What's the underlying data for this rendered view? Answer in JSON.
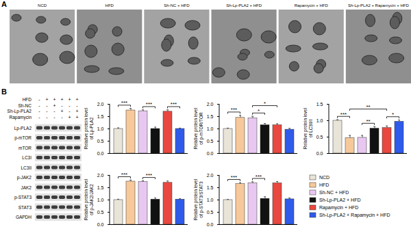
{
  "panels": {
    "A": {
      "label": "A",
      "images": [
        "NCD",
        "HFD",
        "Sh-NC + HFD",
        "Sh-Lp-PLA2 + HFD",
        "Rapamycin + HFD",
        "Sh-Lp-PLA2 + Rapamycin + HFD"
      ]
    },
    "B": {
      "label": "B",
      "blot": {
        "conditions": [
          {
            "name": "HFD",
            "signs": [
              "-",
              "+",
              "+",
              "+",
              "+",
              "+"
            ]
          },
          {
            "name": "Sh-NC",
            "signs": [
              "-",
              "-",
              "+",
              "-",
              "-",
              "-"
            ]
          },
          {
            "name": "Sh-Lp-PLA2",
            "signs": [
              "-",
              "-",
              "-",
              "+",
              "-",
              "+"
            ]
          },
          {
            "name": "Rapamycin",
            "signs": [
              "-",
              "-",
              "-",
              "-",
              "+",
              "+"
            ]
          }
        ],
        "proteins": [
          "Lp-PLA2",
          "p-mTOR",
          "mTOR",
          "LC3I",
          "LC3II",
          "p-JAK2",
          "JAK2",
          "p-STAT3",
          "STAT3",
          "GAPDH"
        ]
      }
    }
  },
  "chart_data": [
    {
      "type": "bar",
      "y_label": "Relative protein level of Lp-PLA2",
      "categories": [
        "NCD",
        "HFD",
        "Sh-NC + HFD",
        "Sh-Lp-PLA2 + HFD",
        "Rapamycin + HFD",
        "Sh-Lp-PLA2 + Rapamycin + HFD"
      ],
      "values": [
        1.0,
        1.75,
        1.72,
        1.0,
        1.7,
        1.0
      ],
      "errors": [
        0.04,
        0.08,
        0.05,
        0.07,
        0.07,
        0.03
      ],
      "colors": [
        "#e9e4d8",
        "#f7c99a",
        "#e8c8f0",
        "#111111",
        "#e8483f",
        "#2f5bea"
      ],
      "ylim": [
        0,
        2
      ],
      "yticks": [
        {
          "value": 0,
          "label": "0.0"
        },
        0.5,
        {
          "value": 1,
          "label": "1.0"
        },
        1.5,
        {
          "value": 2,
          "label": "2.0"
        }
      ],
      "tick_labels": "y",
      "annotations": [
        {
          "from": 0,
          "to": 1,
          "label": "***"
        },
        {
          "from": 2,
          "to": 3,
          "label": "***"
        },
        {
          "from": 4,
          "to": 5,
          "label": "***"
        }
      ]
    },
    {
      "type": "bar",
      "y_label": "Relative protein level of p-mTOR/TOR",
      "categories": [
        "NCD",
        "HFD",
        "Sh-NC + HFD",
        "Sh-Lp-PLA2 + HFD",
        "Rapamycin + HFD",
        "Sh-Lp-PLA2 + Rapamycin + HFD"
      ],
      "values": [
        1.0,
        1.45,
        1.43,
        1.15,
        1.15,
        0.97
      ],
      "errors": [
        0.03,
        0.1,
        0.08,
        0.07,
        0.06,
        0.05
      ],
      "colors": [
        "#e9e4d8",
        "#f7c99a",
        "#e8c8f0",
        "#111111",
        "#e8483f",
        "#2f5bea"
      ],
      "ylim": [
        0,
        2
      ],
      "yticks": [
        {
          "value": 0,
          "label": "0.0"
        },
        0.5,
        {
          "value": 1,
          "label": "1.0"
        },
        1.5,
        {
          "value": 2,
          "label": "2.0"
        }
      ],
      "tick_labels": "y",
      "annotations": [
        {
          "from": 0,
          "to": 1,
          "label": "***"
        },
        {
          "from": 2,
          "to": 3,
          "label": "*"
        },
        {
          "from": 2,
          "to": 4,
          "label": "*"
        }
      ]
    },
    {
      "type": "bar",
      "y_label": "Relative protein level of LC3II/I",
      "categories": [
        "NCD",
        "HFD",
        "Sh-NC + HFD",
        "Sh-Lp-PLA2 + HFD",
        "Rapamycin + HFD",
        "Sh-Lp-PLA2 + Rapamycin + HFD"
      ],
      "values": [
        1.0,
        0.47,
        0.48,
        0.76,
        0.78,
        0.97
      ],
      "errors": [
        0.03,
        0.08,
        0.07,
        0.06,
        0.06,
        0.05
      ],
      "colors": [
        "#e9e4d8",
        "#f7c99a",
        "#e8c8f0",
        "#111111",
        "#e8483f",
        "#2f5bea"
      ],
      "ylim": [
        0,
        1.5
      ],
      "yticks": [
        {
          "value": 0,
          "label": "0.0"
        },
        0.5,
        {
          "value": 1,
          "label": "1.0"
        },
        1.5
      ],
      "tick_labels": "y",
      "annotations": [
        {
          "from": 0,
          "to": 1,
          "label": "***"
        },
        {
          "from": 2,
          "to": 3,
          "label": "**"
        },
        {
          "from": 4,
          "to": 5,
          "label": "*"
        },
        {
          "from": 1,
          "to": 4,
          "label": "**"
        }
      ]
    },
    {
      "type": "bar",
      "y_label": "Relative protein level of p-JAK2/JAK2",
      "categories": [
        "NCD",
        "HFD",
        "Sh-NC + HFD",
        "Sh-Lp-PLA2 + HFD",
        "Rapamycin + HFD",
        "Sh-Lp-PLA2 + Rapamycin + HFD"
      ],
      "values": [
        1.0,
        1.75,
        1.73,
        1.02,
        1.7,
        1.02
      ],
      "errors": [
        0.03,
        0.06,
        0.05,
        0.06,
        0.07,
        0.03
      ],
      "colors": [
        "#e9e4d8",
        "#f7c99a",
        "#e8c8f0",
        "#111111",
        "#e8483f",
        "#2f5bea"
      ],
      "ylim": [
        0,
        2
      ],
      "yticks": [
        {
          "value": 0,
          "label": "0.0"
        },
        0.5,
        {
          "value": 1,
          "label": "1.0"
        },
        1.5,
        {
          "value": 2,
          "label": "2.0"
        }
      ],
      "tick_labels": "y",
      "annotations": [
        {
          "from": 0,
          "to": 1,
          "label": "***"
        },
        {
          "from": 2,
          "to": 3,
          "label": "***"
        }
      ]
    },
    {
      "type": "bar",
      "y_label": "Relative protein level of p-STAT3/STAT3",
      "categories": [
        "NCD",
        "HFD",
        "Sh-NC + HFD",
        "Sh-Lp-PLA2 + HFD",
        "Rapamycin + HFD",
        "Sh-Lp-PLA2 + Rapamycin + HFD"
      ],
      "values": [
        1.0,
        1.65,
        1.68,
        1.05,
        1.68,
        1.03
      ],
      "errors": [
        0.02,
        0.05,
        0.06,
        0.08,
        0.07,
        0.05
      ],
      "colors": [
        "#e9e4d8",
        "#f7c99a",
        "#e8c8f0",
        "#111111",
        "#e8483f",
        "#2f5bea"
      ],
      "ylim": [
        0,
        2
      ],
      "yticks": [
        {
          "value": 0,
          "label": "0.0"
        },
        0.5,
        {
          "value": 1,
          "label": "1.0"
        },
        1.5,
        {
          "value": 2,
          "label": "2.0"
        }
      ],
      "tick_labels": "y",
      "annotations": [
        {
          "from": 0,
          "to": 1,
          "label": "***"
        },
        {
          "from": 2,
          "to": 3,
          "label": "***"
        }
      ]
    }
  ]
}
